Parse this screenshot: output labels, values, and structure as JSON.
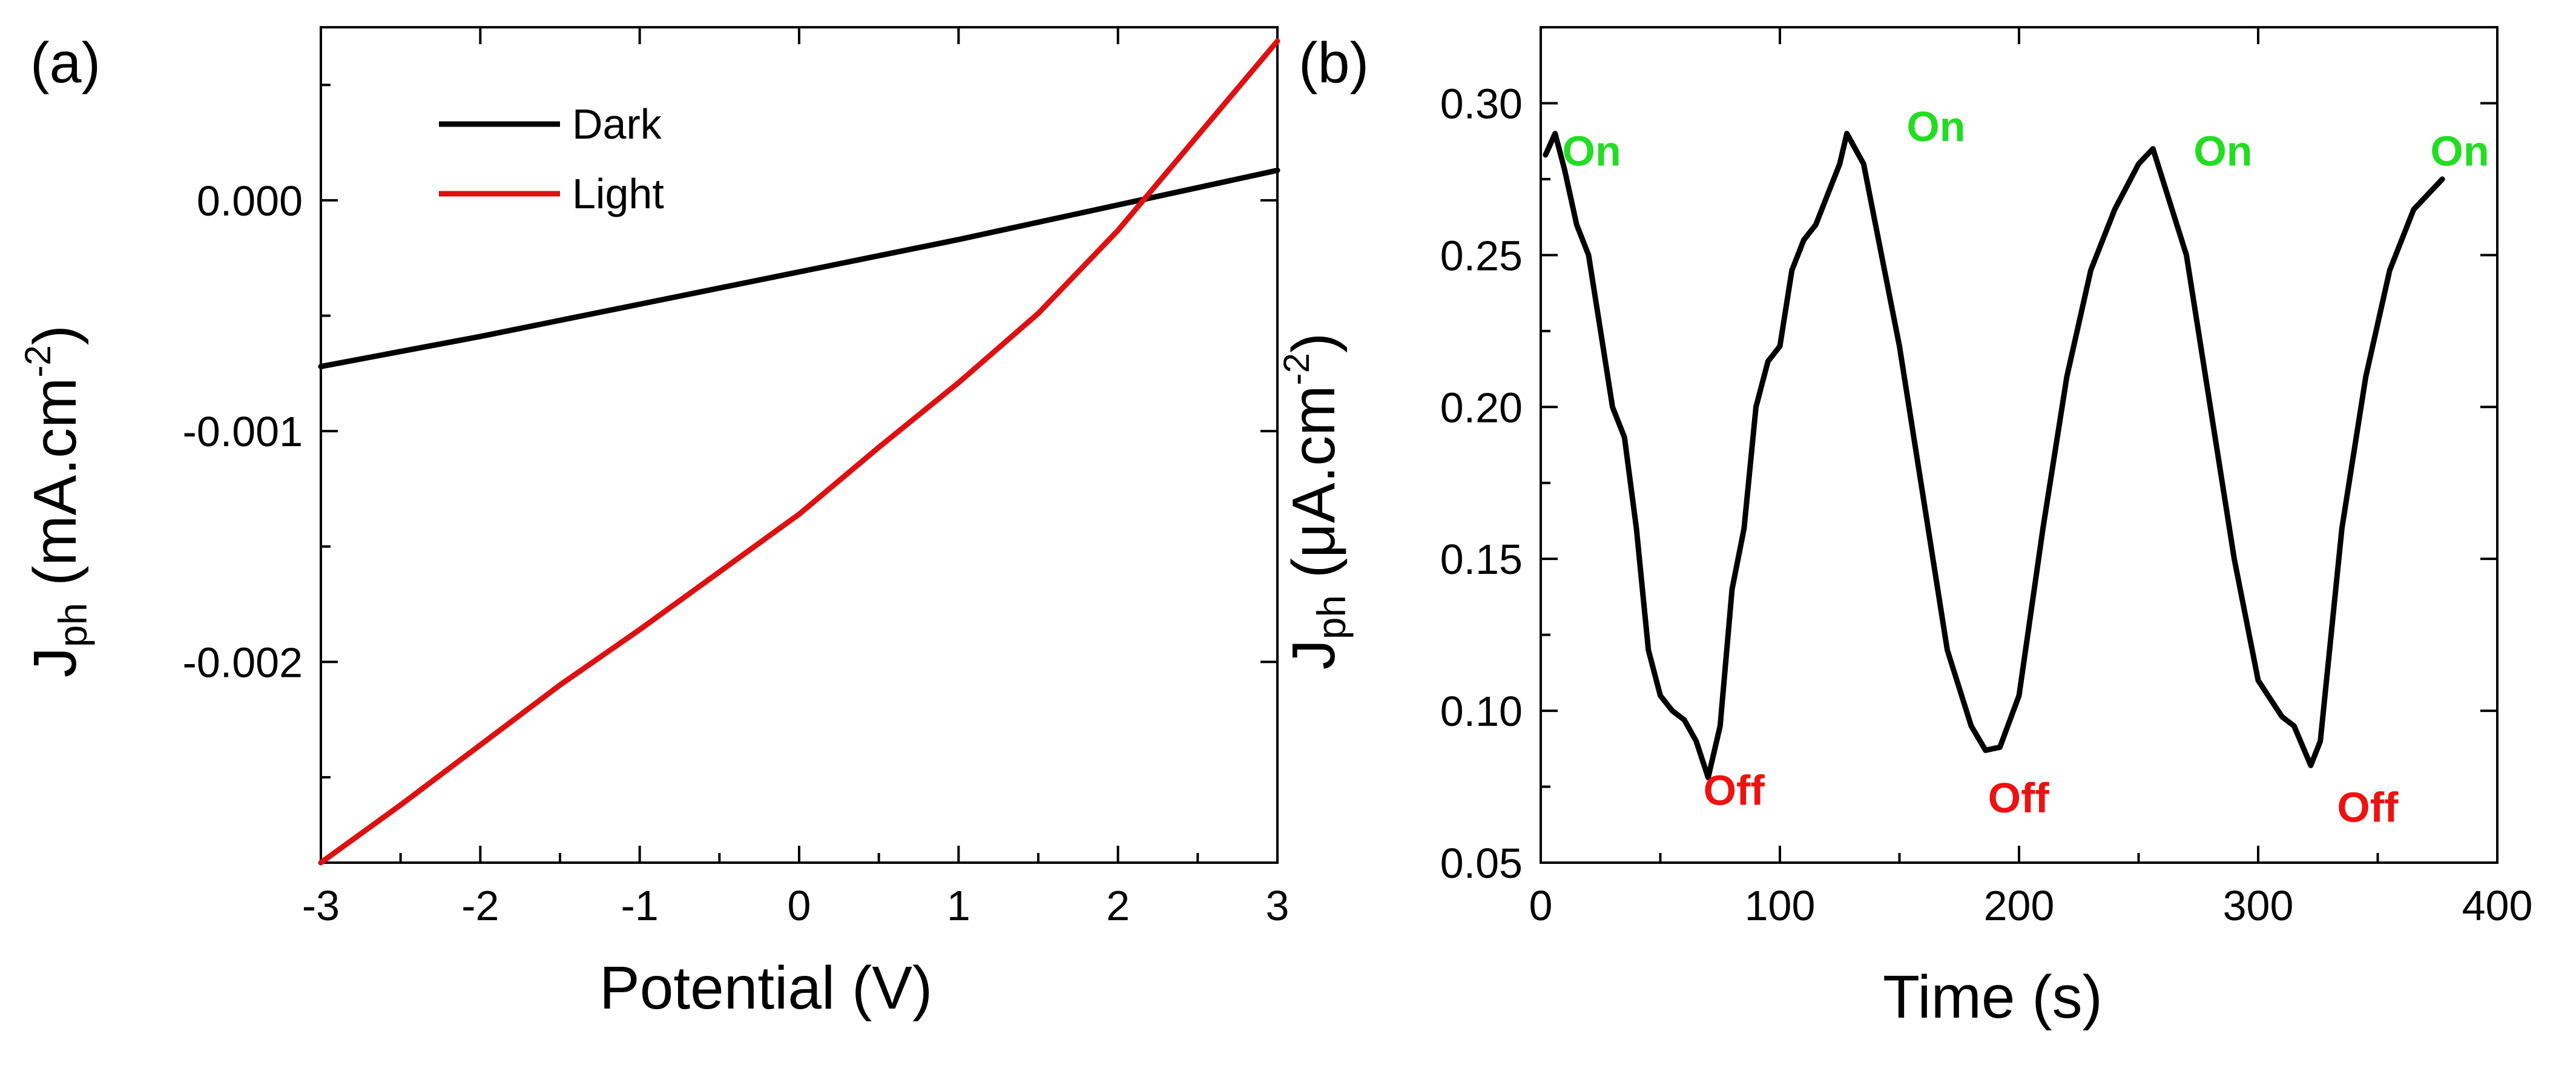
{
  "panels": {
    "a": {
      "label": "(a)",
      "y_title": {
        "main": "J",
        "sub": "ph",
        "unit": " (mA.cm",
        "sup": "-2",
        "close": ")"
      },
      "x_title": "Potential (V)"
    },
    "b": {
      "label": "(b)",
      "y_title": {
        "main": "J",
        "sub": "ph",
        "unit": " (μA.cm",
        "sup": "-2",
        "close": ")"
      },
      "x_title": "Time (s)"
    }
  },
  "colors": {
    "dark": "#000000",
    "light": "#dd1111",
    "on": "#22dd22",
    "off": "#ee1111",
    "axis": "#000000"
  },
  "chart_data": [
    {
      "type": "line",
      "panel": "a",
      "xlabel": "Potential (V)",
      "ylabel": "Jph (mA.cm-2)",
      "xlim": [
        -3,
        3
      ],
      "ylim": [
        -0.00287,
        0.00075
      ],
      "xticks": [
        -3,
        -2,
        -1,
        0,
        1,
        2,
        3
      ],
      "xtick_labels": [
        "-3",
        "-2",
        "-1",
        "0",
        "1",
        "2",
        "3"
      ],
      "yticks": [
        -0.002,
        -0.001,
        0.0
      ],
      "ytick_labels": [
        "-0.002",
        "-0.001",
        "0.000"
      ],
      "legend": {
        "placement": "top-left",
        "entries": [
          "Dark",
          "Light"
        ]
      },
      "series": [
        {
          "name": "Dark",
          "color": "#000000",
          "x": [
            -3,
            -2,
            -1,
            0,
            1,
            2,
            3
          ],
          "y": [
            -0.00072,
            -0.00059,
            -0.00045,
            -0.00031,
            -0.00017,
            -2e-05,
            0.00013
          ]
        },
        {
          "name": "Light",
          "color": "#dd1111",
          "x": [
            -3,
            -2.5,
            -2,
            -1.5,
            -1,
            -0.5,
            0,
            0.5,
            1,
            1.5,
            2,
            2.5,
            3
          ],
          "y": [
            -0.00287,
            -0.00262,
            -0.00236,
            -0.0021,
            -0.00186,
            -0.00161,
            -0.00136,
            -0.00107,
            -0.00079,
            -0.00049,
            -0.00013,
            0.00028,
            0.00069
          ]
        }
      ]
    },
    {
      "type": "line",
      "panel": "b",
      "xlabel": "Time (s)",
      "ylabel": "Jph (μA.cm-2)",
      "xlim": [
        0,
        400
      ],
      "ylim": [
        0.05,
        0.325
      ],
      "xticks": [
        0,
        100,
        200,
        300,
        400
      ],
      "xtick_labels": [
        "0",
        "100",
        "200",
        "300",
        "400"
      ],
      "yticks": [
        0.05,
        0.1,
        0.15,
        0.2,
        0.25,
        0.3
      ],
      "ytick_labels": [
        "0.05",
        "0.10",
        "0.15",
        "0.20",
        "0.25",
        "0.30"
      ],
      "series": [
        {
          "name": "Jph",
          "color": "#000000",
          "x": [
            2,
            6,
            10,
            15,
            20,
            25,
            30,
            35,
            40,
            45,
            50,
            55,
            60,
            65,
            70,
            75,
            80,
            85,
            90,
            95,
            100,
            105,
            110,
            115,
            120,
            125,
            128,
            135,
            140,
            150,
            160,
            170,
            180,
            186,
            192,
            200,
            210,
            220,
            230,
            240,
            250,
            256,
            262,
            270,
            280,
            290,
            300,
            310,
            315,
            322,
            326,
            335,
            345,
            355,
            365,
            377
          ],
          "y": [
            0.283,
            0.29,
            0.278,
            0.26,
            0.25,
            0.225,
            0.2,
            0.19,
            0.16,
            0.12,
            0.105,
            0.1,
            0.097,
            0.09,
            0.078,
            0.095,
            0.14,
            0.16,
            0.2,
            0.215,
            0.22,
            0.245,
            0.255,
            0.26,
            0.27,
            0.28,
            0.29,
            0.28,
            0.26,
            0.22,
            0.17,
            0.12,
            0.095,
            0.087,
            0.088,
            0.105,
            0.16,
            0.21,
            0.245,
            0.265,
            0.28,
            0.285,
            0.27,
            0.25,
            0.2,
            0.15,
            0.11,
            0.098,
            0.095,
            0.082,
            0.09,
            0.16,
            0.21,
            0.245,
            0.265,
            0.275
          ]
        }
      ],
      "annotations": [
        {
          "text": "On",
          "x": 9,
          "y": 0.2795,
          "kind": "on"
        },
        {
          "text": "On",
          "x": 153,
          "y": 0.2875,
          "kind": "on"
        },
        {
          "text": "On",
          "x": 273,
          "y": 0.2795,
          "kind": "on"
        },
        {
          "text": "On",
          "x": 372,
          "y": 0.2795,
          "kind": "on"
        },
        {
          "text": "Off",
          "x": 68,
          "y": 0.069,
          "kind": "off"
        },
        {
          "text": "Off",
          "x": 187,
          "y": 0.0665,
          "kind": "off"
        },
        {
          "text": "Off",
          "x": 333,
          "y": 0.0635,
          "kind": "off"
        }
      ]
    }
  ]
}
